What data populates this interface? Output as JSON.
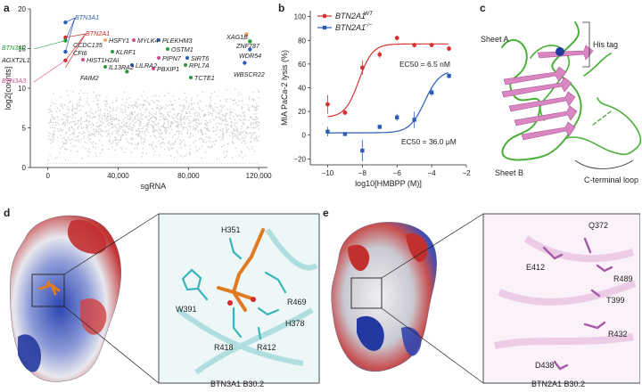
{
  "panels": {
    "a": {
      "letter": "a",
      "ylabel": "log2[counts]",
      "xlabel": "sgRNA",
      "xticks": [
        "0",
        "40,000",
        "80,000",
        "120,000"
      ],
      "yticks": [
        "0",
        "5",
        "10",
        "15",
        "20"
      ],
      "genes": [
        {
          "name": "BTN3A1",
          "color": "#2b5db8"
        },
        {
          "name": "BTN2A1",
          "color": "#d12a2a"
        },
        {
          "name": "BTN3A2",
          "color": "#2a9a3a"
        },
        {
          "name": "AGXT2L1",
          "color": "#222222"
        },
        {
          "name": "BTN3A3",
          "color": "#d94a8a"
        },
        {
          "name": "CCDC135",
          "color": "#222222"
        },
        {
          "name": "CFI6",
          "color": "#222222"
        },
        {
          "name": "HSFY1",
          "color": "#222222"
        },
        {
          "name": "MYLK4",
          "color": "#222222"
        },
        {
          "name": "PLEKHM3",
          "color": "#222222"
        },
        {
          "name": "XAG1B",
          "color": "#222222"
        },
        {
          "name": "ZNF787",
          "color": "#222222"
        },
        {
          "name": "KLRF1",
          "color": "#222222"
        },
        {
          "name": "OSTM1",
          "color": "#222222"
        },
        {
          "name": "WDR54",
          "color": "#222222"
        },
        {
          "name": "HIST1H2AI",
          "color": "#222222"
        },
        {
          "name": "PIPN7",
          "color": "#222222"
        },
        {
          "name": "SIRT6",
          "color": "#222222"
        },
        {
          "name": "IL13RA2",
          "color": "#222222"
        },
        {
          "name": "LILRA2",
          "color": "#222222"
        },
        {
          "name": "PBXIP1",
          "color": "#222222"
        },
        {
          "name": "RPL7A",
          "color": "#222222"
        },
        {
          "name": "WBSCR22",
          "color": "#222222"
        },
        {
          "name": "FAIM2",
          "color": "#222222"
        },
        {
          "name": "TCTE1",
          "color": "#222222"
        }
      ]
    },
    "b": {
      "letter": "b",
      "ylabel": "MIA PaCa-2 lysis (%)",
      "xlabel": "log10[HMBPP (M)]",
      "legend_wt": "BTN2A1",
      "legend_wt_sup": "WT",
      "legend_ko": "BTN2A1",
      "legend_ko_sup": "−/−",
      "ec50_wt": "EC50 = 6.5 nM",
      "ec50_ko": "EC50 = 36.0 μM",
      "xticks": [
        "−10",
        "−8",
        "−6",
        "−4",
        "−2"
      ],
      "yticks": [
        "−20",
        "0",
        "20",
        "40",
        "60",
        "80",
        "100"
      ]
    },
    "c": {
      "letter": "c",
      "sheet_a": "Sheet A",
      "sheet_b": "Sheet B",
      "his_tag": "His tag",
      "c_loop": "C-terminal loop"
    },
    "d": {
      "letter": "d",
      "residues": [
        "H351",
        "W391",
        "R469",
        "H378",
        "R418",
        "R412"
      ],
      "caption": "BTN3A1 B30.2"
    },
    "e": {
      "letter": "e",
      "residues": [
        "E412",
        "Q372",
        "R489",
        "T399",
        "R432",
        "D438"
      ],
      "caption": "BTN2A1 B30.2"
    }
  },
  "chart_data": [
    {
      "type": "scatter",
      "panel": "a",
      "xlabel": "sgRNA",
      "ylabel": "log2[counts]",
      "xlim": [
        -10000,
        125000
      ],
      "ylim": [
        0,
        20
      ],
      "background_band": {
        "y_min": 1,
        "y_max": 10,
        "color": "#cccccc"
      },
      "highlighted": [
        {
          "name": "BTN3A1",
          "x": 10000,
          "y": 18.3
        },
        {
          "name": "BTN2A1",
          "x": 10000,
          "y": 16.4
        },
        {
          "name": "BTN3A2",
          "x": 10000,
          "y": 16.0
        },
        {
          "name": "AGXT2L1",
          "x": 10000,
          "y": 14.6
        },
        {
          "name": "BTN3A3",
          "x": 10000,
          "y": 13.5
        },
        {
          "name": "XAG1B",
          "x": 113000,
          "y": 16.8
        },
        {
          "name": "ZNF787",
          "x": 115000,
          "y": 15.9
        },
        {
          "name": "WDR54",
          "x": 115000,
          "y": 14.9
        },
        {
          "name": "WBSCR22",
          "x": 112000,
          "y": 13.2
        },
        {
          "name": "FAIM2",
          "x": 45000,
          "y": 12.1
        }
      ]
    },
    {
      "type": "line",
      "panel": "b",
      "xlabel": "log10[HMBPP (M)]",
      "ylabel": "MIA PaCa-2 lysis (%)",
      "xlim": [
        -11,
        -2
      ],
      "ylim": [
        -25,
        105
      ],
      "series": [
        {
          "name": "BTN2A1 WT",
          "color": "#d73232",
          "x": [
            -10,
            -9,
            -8,
            -7,
            -6,
            -5,
            -4,
            -3
          ],
          "y": [
            26,
            19,
            57,
            68,
            82,
            76,
            76,
            73
          ],
          "err": [
            8,
            2,
            6,
            3,
            2,
            2,
            2,
            2
          ]
        },
        {
          "name": "BTN2A1 −/−",
          "color": "#2b5db8",
          "x": [
            -10,
            -9,
            -8,
            -7,
            -6,
            -5,
            -4,
            -3
          ],
          "y": [
            3,
            1,
            -13,
            7,
            15,
            13,
            36,
            50
          ],
          "err": [
            4,
            1,
            9,
            2,
            3,
            7,
            3,
            2
          ]
        }
      ]
    }
  ]
}
